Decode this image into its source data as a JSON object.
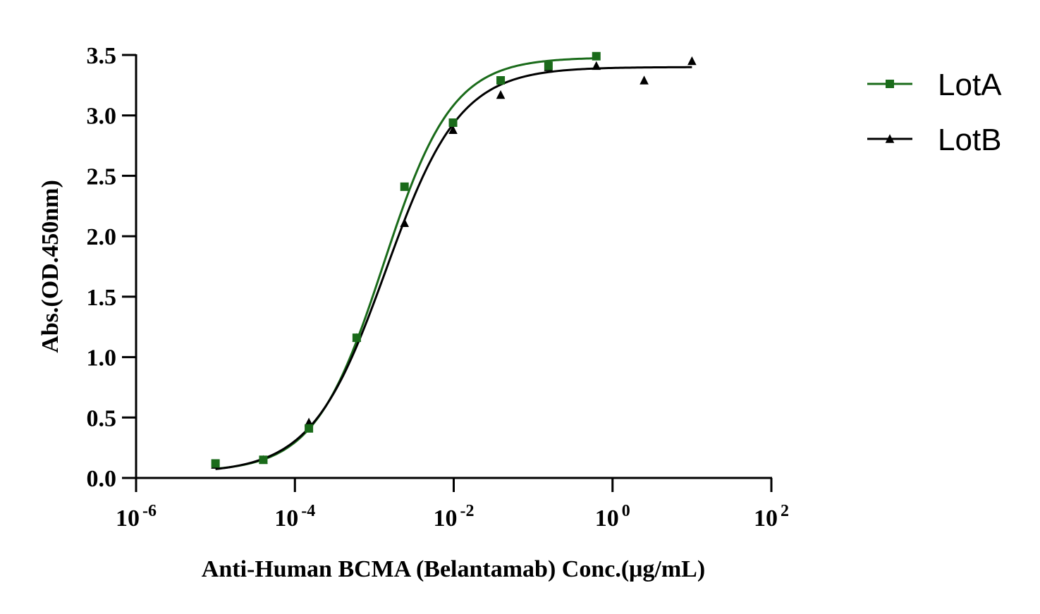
{
  "chart_data": {
    "type": "line",
    "xlabel": "Anti-Human BCMA (Belantamab) Conc.(μg/mL)",
    "ylabel": "Abs.(OD.450nm)",
    "x_scale": "log",
    "xlim": [
      1e-06,
      100
    ],
    "ylim": [
      0,
      3.5
    ],
    "x_ticks": [
      {
        "base": "10",
        "exp": "-6",
        "value": 1e-06
      },
      {
        "base": "10",
        "exp": "-4",
        "value": 0.0001
      },
      {
        "base": "10",
        "exp": "-2",
        "value": 0.01
      },
      {
        "base": "10",
        "exp": "0",
        "value": 1
      },
      {
        "base": "10",
        "exp": "2",
        "value": 100
      }
    ],
    "y_ticks": [
      "0.0",
      "0.5",
      "1.0",
      "1.5",
      "2.0",
      "2.5",
      "3.0",
      "3.5"
    ],
    "grid": false,
    "legend_position": "top-right",
    "series": [
      {
        "name": "LotA",
        "color": "#1a6b1a",
        "marker": "square",
        "x": [
          1e-05,
          4e-05,
          0.00015,
          0.0006,
          0.0024,
          0.0098,
          0.039,
          0.156,
          0.625
        ],
        "y": [
          0.12,
          0.15,
          0.41,
          1.16,
          2.41,
          2.94,
          3.29,
          3.41,
          3.49
        ],
        "fit": {
          "bottom": 0.05,
          "top": 3.48,
          "ec50": 0.0013,
          "hill": 1.0
        }
      },
      {
        "name": "LotB",
        "color": "#000000",
        "marker": "triangle",
        "x": [
          1e-05,
          4e-05,
          0.00015,
          0.0006,
          0.0024,
          0.0098,
          0.039,
          0.156,
          0.625,
          2.5,
          10
        ],
        "y": [
          0.11,
          0.15,
          0.46,
          1.16,
          2.11,
          2.88,
          3.17,
          3.4,
          3.41,
          3.29,
          3.45
        ],
        "fit": {
          "bottom": 0.04,
          "top": 3.4,
          "ec50": 0.0014,
          "hill": 0.93
        }
      }
    ]
  }
}
